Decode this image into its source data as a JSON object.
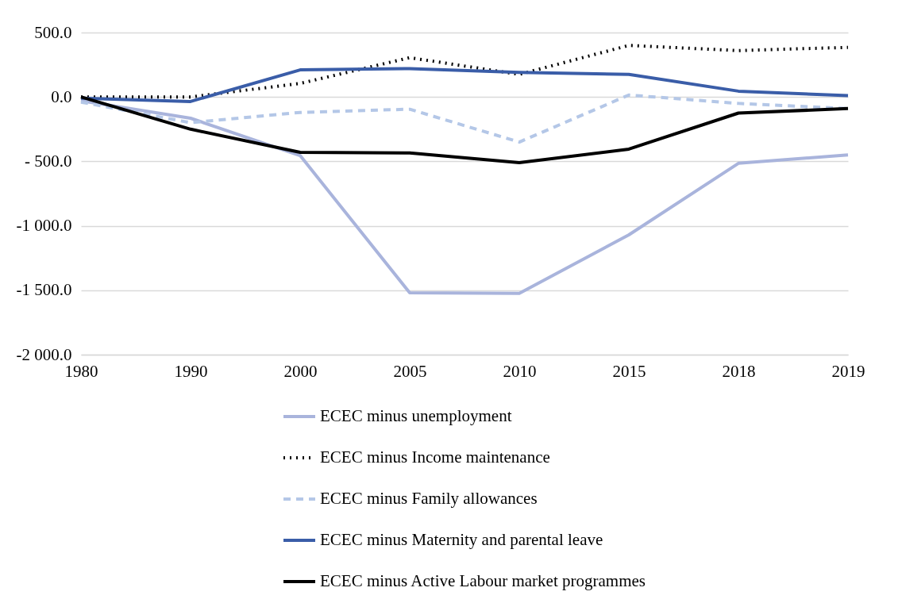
{
  "chart_data": {
    "type": "line",
    "categories": [
      "1980",
      "1990",
      "2000",
      "2005",
      "2010",
      "2015",
      "2018",
      "2019"
    ],
    "series": [
      {
        "name": "ECEC minus unemployment",
        "color": "#a9b4dc",
        "line_style": "solid",
        "values": [
          -30,
          -165,
          -455,
          -1520,
          -1525,
          -1070,
          -515,
          -450
        ]
      },
      {
        "name": "ECEC minus Income maintenance",
        "color": "#000000",
        "line_style": "dotted",
        "values": [
          0,
          0,
          105,
          305,
          175,
          400,
          360,
          385
        ]
      },
      {
        "name": "ECEC minus Family allowances",
        "color": "#b4c7e7",
        "line_style": "dashed",
        "values": [
          -40,
          -200,
          -120,
          -95,
          -350,
          15,
          -50,
          -90
        ]
      },
      {
        "name": "ECEC minus Maternity and parental leave",
        "color": "#3a5da8",
        "line_style": "solid",
        "values": [
          -10,
          -35,
          210,
          220,
          190,
          175,
          45,
          10
        ]
      },
      {
        "name": "ECEC minus Active Labour market programmes",
        "color": "#000000",
        "line_style": "solid",
        "values": [
          0,
          -250,
          -430,
          -435,
          -510,
          -405,
          -125,
          -90
        ]
      }
    ],
    "ylim": [
      -2000,
      500
    ],
    "yticks": [
      {
        "value": 500,
        "label": "500.0"
      },
      {
        "value": 0,
        "label": "0.0"
      },
      {
        "value": -500,
        "label": "- 500.0"
      },
      {
        "value": -1000,
        "label": "-1 000.0"
      },
      {
        "value": -1500,
        "label": "-1 500.0"
      },
      {
        "value": -2000,
        "label": "-2 000.0"
      }
    ],
    "grid": "y",
    "legend": "bottom",
    "marker": "none"
  }
}
